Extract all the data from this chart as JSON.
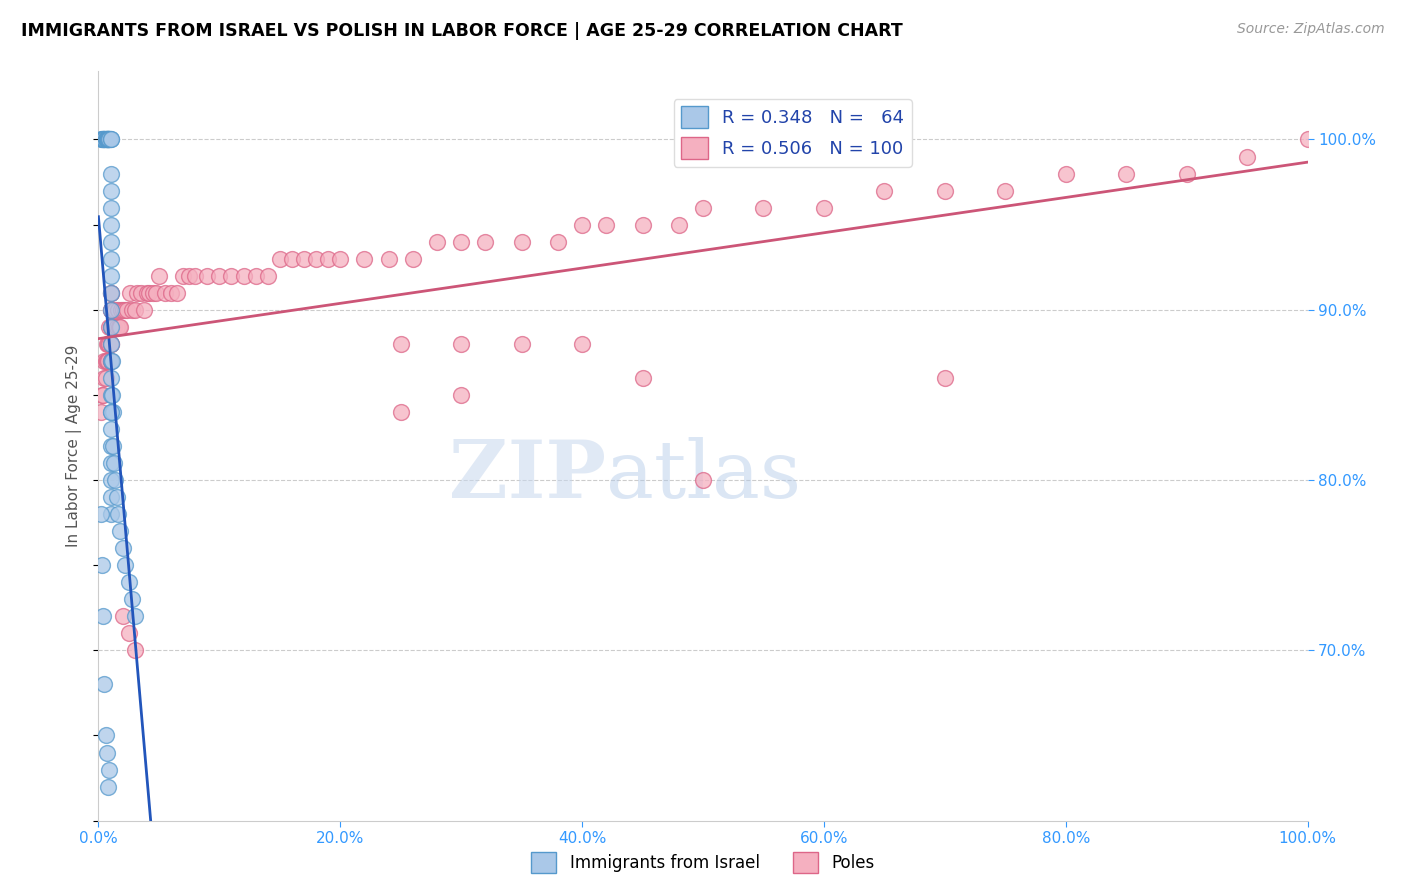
{
  "title": "IMMIGRANTS FROM ISRAEL VS POLISH IN LABOR FORCE | AGE 25-29 CORRELATION CHART",
  "source": "Source: ZipAtlas.com",
  "ylabel": "In Labor Force | Age 25-29",
  "xlim": [
    0.0,
    1.0
  ],
  "ylim": [
    0.6,
    1.04
  ],
  "x_ticks": [
    0.0,
    0.2,
    0.4,
    0.6,
    0.8,
    1.0
  ],
  "x_tick_labels": [
    "0.0%",
    "20.0%",
    "40.0%",
    "60.0%",
    "80.0%",
    "100.0%"
  ],
  "y_ticks_right": [
    0.7,
    0.8,
    0.9,
    1.0
  ],
  "y_tick_labels_right": [
    "70.0%",
    "80.0%",
    "90.0%",
    "100.0%"
  ],
  "israel_color": "#aac8e8",
  "poles_color": "#f5b0c0",
  "israel_edge": "#5599cc",
  "poles_edge": "#dd6688",
  "israel_line_color": "#2255bb",
  "poles_line_color": "#cc5577",
  "watermark_zip": "ZIP",
  "watermark_atlas": "atlas",
  "israel_x": [
    0.002,
    0.003,
    0.004,
    0.004,
    0.005,
    0.005,
    0.005,
    0.006,
    0.006,
    0.007,
    0.007,
    0.007,
    0.008,
    0.008,
    0.008,
    0.009,
    0.009,
    0.009,
    0.01,
    0.01,
    0.01,
    0.01,
    0.01,
    0.01,
    0.01,
    0.01,
    0.01,
    0.01,
    0.01,
    0.01,
    0.01,
    0.01,
    0.01,
    0.01,
    0.01,
    0.01,
    0.01,
    0.01,
    0.01,
    0.01,
    0.01,
    0.011,
    0.011,
    0.012,
    0.012,
    0.013,
    0.014,
    0.015,
    0.016,
    0.018,
    0.02,
    0.022,
    0.025,
    0.028,
    0.03,
    0.002,
    0.003,
    0.004,
    0.005,
    0.006,
    0.007,
    0.008,
    0.009,
    0.01
  ],
  "israel_y": [
    1.0,
    1.0,
    1.0,
    1.0,
    1.0,
    1.0,
    1.0,
    1.0,
    1.0,
    1.0,
    1.0,
    1.0,
    1.0,
    1.0,
    1.0,
    1.0,
    1.0,
    1.0,
    1.0,
    1.0,
    0.98,
    0.97,
    0.96,
    0.95,
    0.94,
    0.93,
    0.92,
    0.91,
    0.9,
    0.89,
    0.88,
    0.87,
    0.86,
    0.85,
    0.84,
    0.83,
    0.82,
    0.81,
    0.8,
    0.79,
    0.78,
    0.87,
    0.85,
    0.84,
    0.82,
    0.81,
    0.8,
    0.79,
    0.78,
    0.77,
    0.76,
    0.75,
    0.74,
    0.73,
    0.72,
    0.78,
    0.75,
    0.72,
    0.68,
    0.65,
    0.64,
    0.62,
    0.63,
    0.84
  ],
  "poles_x": [
    0.002,
    0.003,
    0.004,
    0.005,
    0.005,
    0.006,
    0.006,
    0.007,
    0.007,
    0.008,
    0.008,
    0.009,
    0.009,
    0.01,
    0.01,
    0.01,
    0.01,
    0.01,
    0.01,
    0.01,
    0.01,
    0.01,
    0.01,
    0.01,
    0.011,
    0.012,
    0.013,
    0.014,
    0.015,
    0.016,
    0.017,
    0.018,
    0.019,
    0.02,
    0.022,
    0.024,
    0.026,
    0.028,
    0.03,
    0.032,
    0.035,
    0.038,
    0.04,
    0.042,
    0.045,
    0.048,
    0.05,
    0.055,
    0.06,
    0.065,
    0.07,
    0.075,
    0.08,
    0.09,
    0.1,
    0.11,
    0.12,
    0.13,
    0.14,
    0.15,
    0.16,
    0.17,
    0.18,
    0.19,
    0.2,
    0.22,
    0.24,
    0.26,
    0.28,
    0.3,
    0.32,
    0.35,
    0.38,
    0.4,
    0.42,
    0.45,
    0.48,
    0.5,
    0.55,
    0.6,
    0.65,
    0.7,
    0.75,
    0.8,
    0.85,
    0.9,
    0.95,
    1.0,
    0.25,
    0.3,
    0.02,
    0.025,
    0.03,
    0.35,
    0.4,
    0.45,
    0.5,
    0.7,
    0.25,
    0.3
  ],
  "poles_y": [
    0.84,
    0.85,
    0.85,
    0.86,
    0.87,
    0.86,
    0.87,
    0.87,
    0.88,
    0.87,
    0.88,
    0.88,
    0.89,
    0.87,
    0.87,
    0.88,
    0.88,
    0.89,
    0.89,
    0.9,
    0.9,
    0.9,
    0.91,
    0.91,
    0.89,
    0.89,
    0.89,
    0.9,
    0.89,
    0.9,
    0.89,
    0.89,
    0.9,
    0.9,
    0.9,
    0.9,
    0.91,
    0.9,
    0.9,
    0.91,
    0.91,
    0.9,
    0.91,
    0.91,
    0.91,
    0.91,
    0.92,
    0.91,
    0.91,
    0.91,
    0.92,
    0.92,
    0.92,
    0.92,
    0.92,
    0.92,
    0.92,
    0.92,
    0.92,
    0.93,
    0.93,
    0.93,
    0.93,
    0.93,
    0.93,
    0.93,
    0.93,
    0.93,
    0.94,
    0.94,
    0.94,
    0.94,
    0.94,
    0.95,
    0.95,
    0.95,
    0.95,
    0.96,
    0.96,
    0.96,
    0.97,
    0.97,
    0.97,
    0.98,
    0.98,
    0.98,
    0.99,
    1.0,
    0.88,
    0.88,
    0.72,
    0.71,
    0.7,
    0.88,
    0.88,
    0.86,
    0.8,
    0.86,
    0.84,
    0.85
  ]
}
